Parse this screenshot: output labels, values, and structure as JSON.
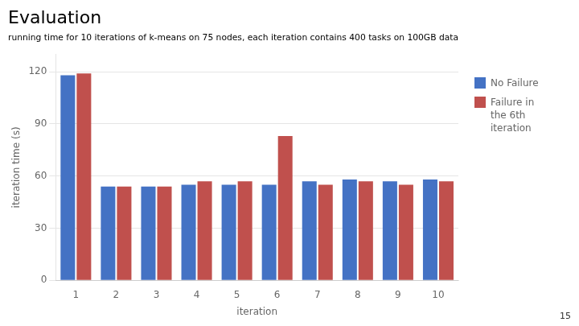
{
  "chart_data": {
    "type": "bar",
    "title": "Evaluation",
    "subtitle": "running time for 10 iterations of k-means on 75 nodes, each iteration contains 400 tasks on 100GB data",
    "xlabel": "iteration",
    "ylabel": "iteration time (s)",
    "categories": [
      1,
      2,
      3,
      4,
      5,
      6,
      7,
      8,
      9,
      10
    ],
    "series": [
      {
        "name": "No Failure",
        "color": "#4472C4",
        "values": [
          118,
          54,
          54,
          55,
          55,
          55,
          57,
          58,
          57,
          58
        ]
      },
      {
        "name": "Failure in\nthe 6th\niteration",
        "color": "#C0504D",
        "values": [
          119,
          54,
          54,
          57,
          57,
          83,
          55,
          57,
          55,
          57
        ]
      }
    ],
    "ylim": [
      0,
      130
    ],
    "yticks": [
      0,
      30,
      60,
      90,
      120
    ],
    "grid": true,
    "legend": "right",
    "annotations": [
      "15"
    ]
  }
}
